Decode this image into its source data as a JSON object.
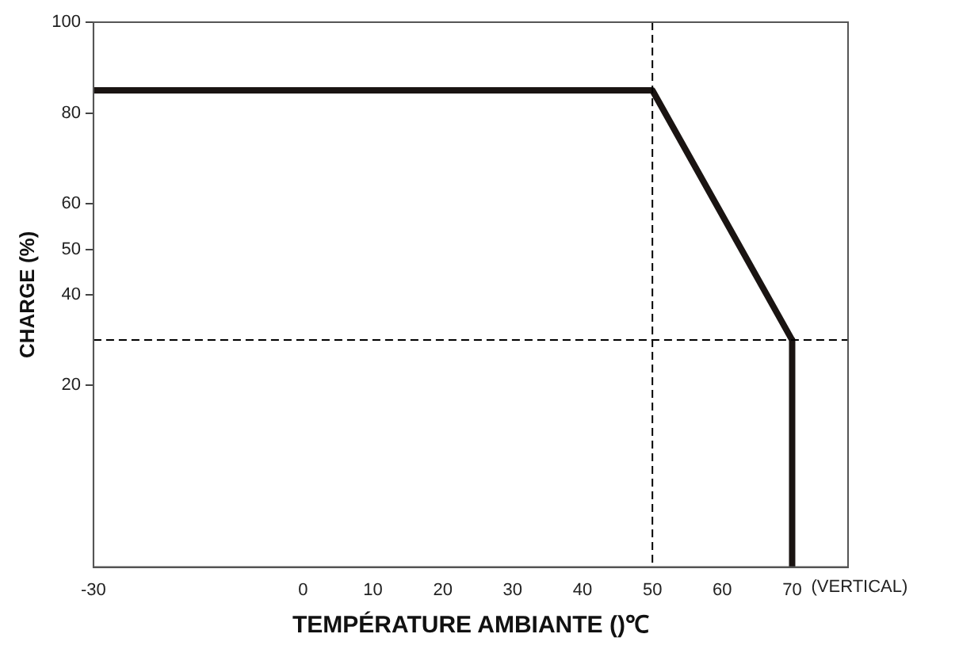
{
  "chart_data": {
    "type": "line",
    "xlabel": "TEMPÉRATURE AMBIANTE ()℃",
    "ylabel": "CHARGE (%)",
    "x": [
      -30,
      50,
      70,
      70
    ],
    "series": [
      {
        "color": "#1a1412",
        "values": [
          85,
          85,
          30,
          -20
        ]
      }
    ],
    "xlim": [
      -30,
      78
    ],
    "xticks": [
      -30,
      0,
      10,
      20,
      30,
      40,
      50,
      60,
      70
    ],
    "ylim": [
      -20,
      100
    ],
    "yticks": [
      20,
      40,
      50,
      60,
      80,
      100
    ],
    "ref_lines": [
      {
        "axis": "x",
        "value": 50,
        "line_style": "dashed",
        "color": "#000000"
      },
      {
        "axis": "y",
        "value": 30,
        "line_style": "dashed",
        "color": "#000000"
      }
    ],
    "annotations": [
      "(VERTICAL)"
    ],
    "grid": false,
    "legend": false,
    "marker": "none",
    "line_style": "solid"
  }
}
